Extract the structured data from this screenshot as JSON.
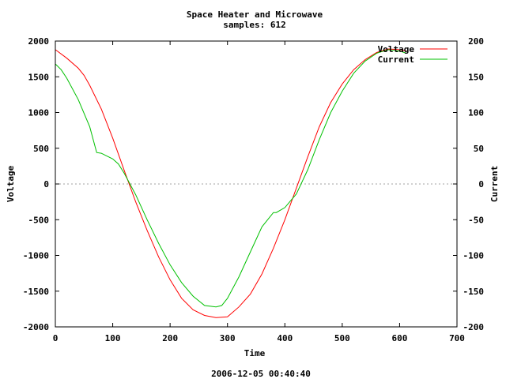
{
  "chart_data": {
    "type": "line",
    "title": "Space Heater and Microwave",
    "subtitle": "samples: 612",
    "xlabel": "Time",
    "ylabel": "Voltage",
    "y2label": "Current",
    "footer": "2006-12-05 00:40:40",
    "xlim": [
      0,
      700
    ],
    "ylim": [
      -2000,
      2000
    ],
    "y2lim": [
      -200,
      200
    ],
    "x_ticks": [
      "0",
      "100",
      "200",
      "300",
      "400",
      "500",
      "600",
      "700"
    ],
    "y_ticks": [
      "2000",
      "1500",
      "1000",
      "500",
      "0",
      "-500",
      "-1000",
      "-1500",
      "-2000"
    ],
    "y2_ticks": [
      "200",
      "150",
      "100",
      "50",
      "0",
      "-50",
      "-100",
      "-150",
      "-200"
    ],
    "zero_line": true,
    "legend_position": "top-right",
    "series": [
      {
        "name": "Voltage",
        "axis": "y",
        "color": "#ff0000",
        "x": [
          0,
          20,
          40,
          50,
          60,
          80,
          100,
          120,
          140,
          160,
          180,
          200,
          220,
          240,
          260,
          280,
          300,
          320,
          340,
          360,
          380,
          400,
          420,
          440,
          460,
          480,
          500,
          520,
          540,
          560,
          580,
          600,
          612
        ],
        "y": [
          1880,
          1760,
          1620,
          1520,
          1380,
          1050,
          640,
          190,
          -250,
          -650,
          -1020,
          -1340,
          -1600,
          -1760,
          -1840,
          -1870,
          -1860,
          -1720,
          -1540,
          -1260,
          -900,
          -500,
          -60,
          380,
          800,
          1140,
          1400,
          1600,
          1740,
          1840,
          1890,
          1880,
          1860
        ]
      },
      {
        "name": "Current",
        "axis": "y2",
        "color": "#00c000",
        "x": [
          0,
          10,
          20,
          40,
          60,
          72,
          80,
          100,
          110,
          120,
          140,
          160,
          180,
          200,
          220,
          240,
          260,
          280,
          290,
          300,
          320,
          340,
          360,
          380,
          385,
          400,
          420,
          440,
          460,
          480,
          500,
          520,
          540,
          560,
          580,
          600,
          612
        ],
        "y": [
          168,
          160,
          148,
          118,
          80,
          44,
          43,
          35,
          28,
          15,
          -15,
          -50,
          -83,
          -113,
          -138,
          -157,
          -170,
          -172,
          -170,
          -160,
          -130,
          -95,
          -60,
          -40,
          -40,
          -33,
          -14,
          20,
          62,
          100,
          130,
          155,
          172,
          183,
          188,
          186,
          183
        ]
      }
    ]
  }
}
